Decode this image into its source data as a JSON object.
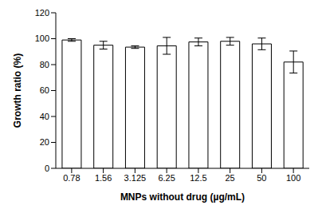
{
  "chart_data": {
    "type": "bar",
    "x_label": "MNPs without drug (µg/mL)",
    "y_label": "Growth ratio (%)",
    "categories": [
      "0.78",
      "1.56",
      "3.125",
      "6.25",
      "12.5",
      "25",
      "50",
      "100"
    ],
    "values": [
      99,
      95,
      93.5,
      94.5,
      97.5,
      98,
      96,
      82
    ],
    "errors": [
      1,
      3,
      1,
      6.5,
      3,
      3,
      4.5,
      8.5
    ],
    "color": "#ffffff",
    "ylim": [
      0,
      120
    ],
    "yticks": [
      0,
      20,
      40,
      60,
      80,
      100,
      120
    ],
    "grid": false
  }
}
